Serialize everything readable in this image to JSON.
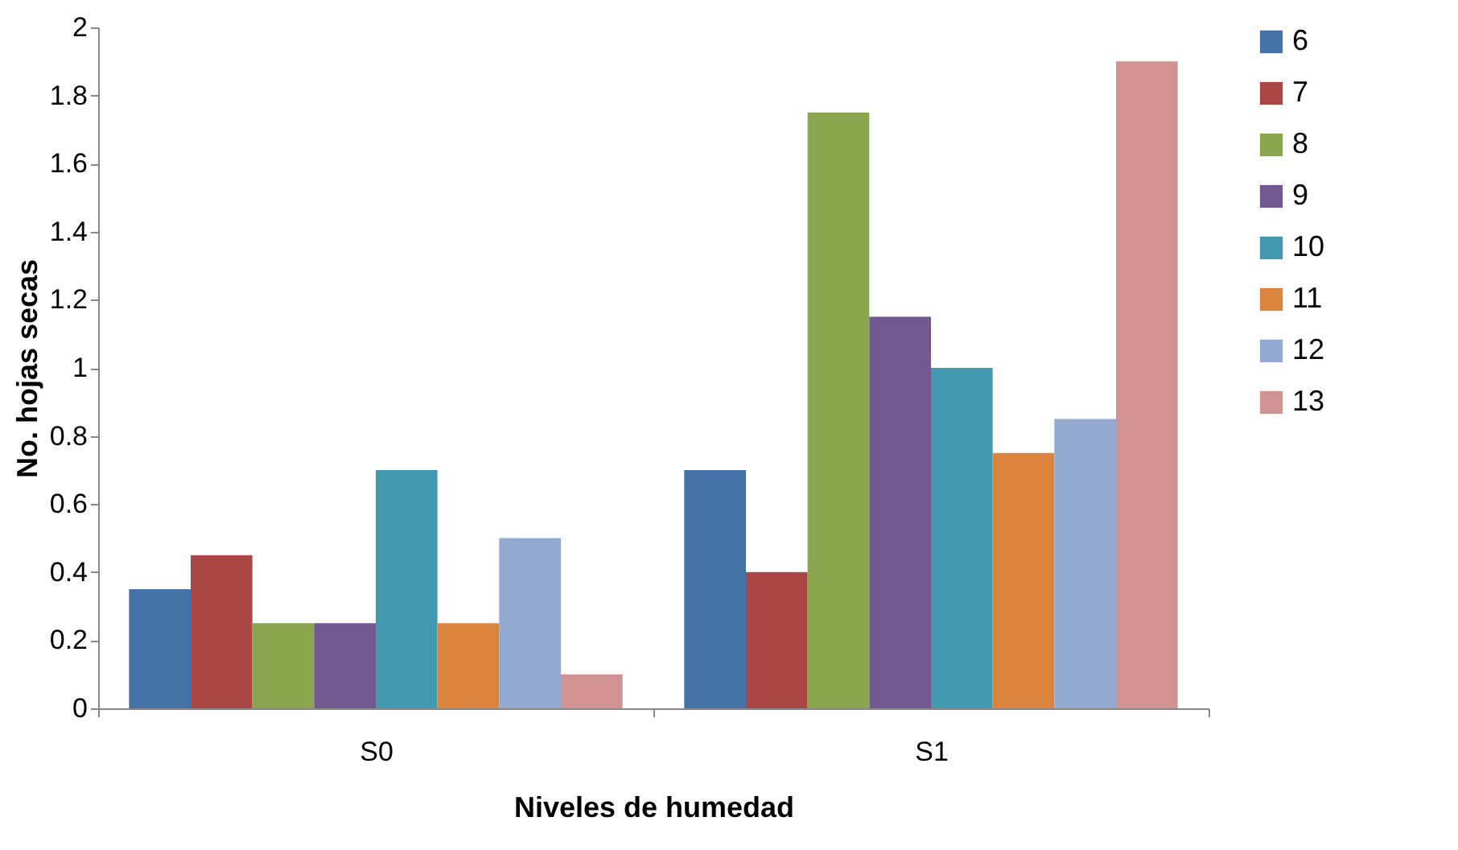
{
  "chart_data": {
    "type": "bar",
    "xlabel": "Niveles de humedad",
    "ylabel": "No. hojas secas",
    "categories": [
      "S0",
      "S1"
    ],
    "series": [
      {
        "name": "6",
        "color": "#4572a7",
        "values": [
          0.35,
          0.7
        ]
      },
      {
        "name": "7",
        "color": "#aa4643",
        "values": [
          0.45,
          0.4
        ]
      },
      {
        "name": "8",
        "color": "#89a54e",
        "values": [
          0.25,
          1.75
        ]
      },
      {
        "name": "9",
        "color": "#71588f",
        "values": [
          0.25,
          1.15
        ]
      },
      {
        "name": "10",
        "color": "#4198af",
        "values": [
          0.7,
          1.0
        ]
      },
      {
        "name": "11",
        "color": "#db843d",
        "values": [
          0.25,
          0.75
        ]
      },
      {
        "name": "12",
        "color": "#93a9cf",
        "values": [
          0.5,
          0.85
        ]
      },
      {
        "name": "13",
        "color": "#d19392",
        "values": [
          0.1,
          1.9
        ]
      }
    ],
    "ylim": [
      0,
      2
    ],
    "yticks": [
      0,
      0.2,
      0.4,
      0.6,
      0.8,
      1,
      1.2,
      1.4,
      1.6,
      1.8,
      2
    ],
    "grid": false,
    "legend": "right"
  }
}
